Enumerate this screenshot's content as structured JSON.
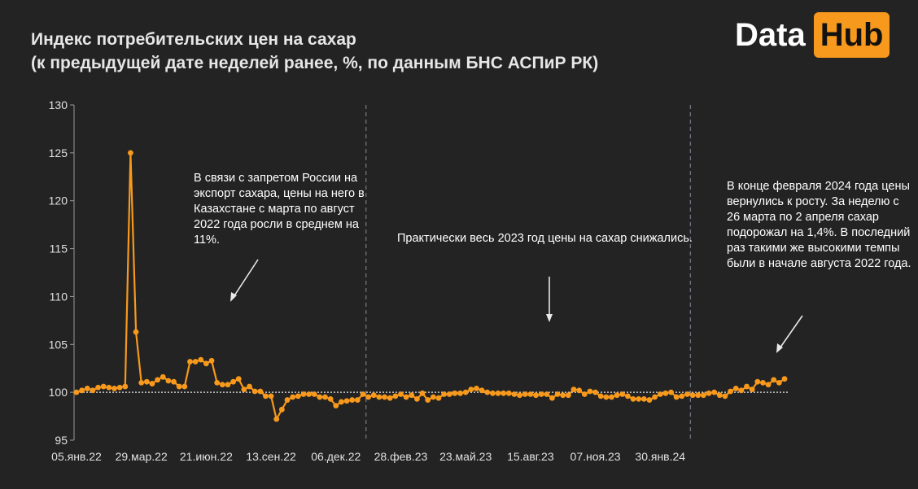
{
  "header": {
    "title_line1": "Индекс потребительских цен на сахар",
    "title_line2": "(к предыдущей дате неделей ранее, %, по данным БНС АСПиР РК)"
  },
  "logo": {
    "part1": "Data",
    "part2": "Hub",
    "accent": "#f7991c"
  },
  "annotations": [
    "В связи с запретом России на экспорт сахара, цены на него в Казахстане с марта по август 2022 года росли в среднем на 11%.",
    "Практически весь 2023 год цены на сахар снижались.",
    "В конце февраля 2024 года цены вернулись к росту. За неделю с 26 марта по 2 апреля сахар подорожал на 1,4%. В последний раз такими же высокими темпы были в начале августа 2022 года."
  ],
  "chart_data": {
    "type": "line",
    "title": "Индекс потребительских цен на сахар",
    "subtitle": "(к предыдущей дате неделей ранее, %, по данным БНС АСПиР РК)",
    "xlabel": "",
    "ylabel": "",
    "ylim": [
      95,
      130
    ],
    "yticks": [
      95,
      100,
      105,
      110,
      115,
      120,
      125,
      130
    ],
    "x_tick_labels": [
      "05.янв.22",
      "29.мар.22",
      "21.июн.22",
      "13.сен.22",
      "06.дек.22",
      "28.фев.23",
      "23.май.23",
      "15.авг.23",
      "07.ноя.23",
      "30.янв.24"
    ],
    "grid": false,
    "reference_line": 100,
    "vertical_dividers": [
      "06.дек.22",
      "30.янв.24"
    ],
    "line_color": "#f7991c",
    "series": [
      {
        "values": [
          100.0,
          100.2,
          100.4,
          100.2,
          100.5,
          100.6,
          100.5,
          100.4,
          100.5,
          100.6,
          125.0,
          106.3,
          101.0,
          101.1,
          100.9,
          101.3,
          101.6,
          101.2,
          101.1,
          100.6,
          100.6,
          103.2,
          103.2,
          103.4,
          103.0,
          103.3,
          101.0,
          100.8,
          100.8,
          101.1,
          101.4,
          100.3,
          100.6,
          100.1,
          100.1,
          99.6,
          99.6,
          97.2,
          98.2,
          99.2,
          99.5,
          99.6,
          99.8,
          99.8,
          99.8,
          99.5,
          99.5,
          99.3,
          98.6,
          99.0,
          99.1,
          99.2,
          99.2,
          99.8,
          99.5,
          99.7,
          99.5,
          99.5,
          99.4,
          99.6,
          99.8,
          99.5,
          99.7,
          99.3,
          99.9,
          99.2,
          99.5,
          99.4,
          99.8,
          99.8,
          99.9,
          99.9,
          100.0,
          100.3,
          100.4,
          100.2,
          100.0,
          99.9,
          99.9,
          99.9,
          99.9,
          99.8,
          99.7,
          99.8,
          99.8,
          99.7,
          99.8,
          99.8,
          99.4,
          99.8,
          99.7,
          99.7,
          100.3,
          100.2,
          99.8,
          100.1,
          100.0,
          99.6,
          99.5,
          99.5,
          99.7,
          99.8,
          99.6,
          99.3,
          99.3,
          99.3,
          99.2,
          99.5,
          99.8,
          99.9,
          100.0,
          99.5,
          99.6,
          99.8,
          99.7,
          99.7,
          99.7,
          99.9,
          100.0,
          99.7,
          99.6,
          100.1,
          100.4,
          100.2,
          100.6,
          100.3,
          101.1,
          101.0,
          100.8,
          101.3,
          101.0,
          101.4
        ]
      }
    ]
  }
}
